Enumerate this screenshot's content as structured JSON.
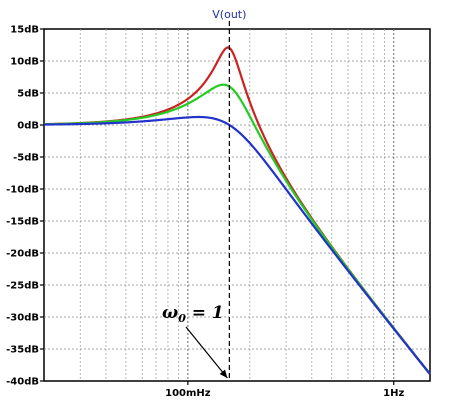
{
  "chart_data": {
    "type": "line",
    "title": "V(out)",
    "xlabel": "",
    "ylabel": "",
    "x_scale": "log",
    "xlim_hz": [
      0.02,
      1.5
    ],
    "ylim_db": [
      -40,
      15
    ],
    "grid": true,
    "y_ticks": [
      {
        "value": 15,
        "label": "15dB"
      },
      {
        "value": 10,
        "label": "10dB"
      },
      {
        "value": 5,
        "label": "5dB"
      },
      {
        "value": 0,
        "label": "0dB"
      },
      {
        "value": -5,
        "label": "-5dB"
      },
      {
        "value": -10,
        "label": "-10dB"
      },
      {
        "value": -15,
        "label": "-15dB"
      },
      {
        "value": -20,
        "label": "-20dB"
      },
      {
        "value": -25,
        "label": "-25dB"
      },
      {
        "value": -30,
        "label": "-30dB"
      },
      {
        "value": -35,
        "label": "-35dB"
      },
      {
        "value": -40,
        "label": "-40dB"
      }
    ],
    "x_ticks": [
      {
        "value": 0.1,
        "label": "100mHz"
      },
      {
        "value": 1,
        "label": "1Hz"
      }
    ],
    "marker_frequency_hz": 0.159,
    "series": [
      {
        "color": "#cc2222",
        "damping_zeta": 0.125,
        "x": [
          0.02,
          0.03,
          0.05,
          0.07,
          0.09,
          0.11,
          0.13,
          0.145,
          0.155,
          0.159,
          0.165,
          0.18,
          0.2,
          0.25,
          0.3,
          0.5,
          0.7,
          1.0,
          1.5
        ],
        "values": [
          0.14,
          0.32,
          0.94,
          2.0,
          3.6,
          5.9,
          9.0,
          11.5,
          12.0,
          11.9,
          11.0,
          8.0,
          4.5,
          -1.0,
          -5.2,
          -14.5,
          -20.2,
          -26.6,
          -33.6
        ]
      },
      {
        "color": "#22cc22",
        "damping_zeta": 0.25,
        "x": [
          0.02,
          0.03,
          0.05,
          0.07,
          0.09,
          0.11,
          0.13,
          0.145,
          0.155,
          0.159,
          0.165,
          0.18,
          0.2,
          0.25,
          0.3,
          0.5,
          0.7,
          1.0,
          1.5
        ],
        "values": [
          0.12,
          0.28,
          0.83,
          1.7,
          2.9,
          4.2,
          5.5,
          6.1,
          6.1,
          6.0,
          5.6,
          4.3,
          2.4,
          -1.8,
          -5.5,
          -14.6,
          -20.2,
          -26.6,
          -33.6
        ]
      },
      {
        "color": "#2233cc",
        "damping_zeta": 0.5,
        "x": [
          0.02,
          0.03,
          0.05,
          0.07,
          0.09,
          0.11,
          0.13,
          0.145,
          0.155,
          0.159,
          0.165,
          0.18,
          0.2,
          0.25,
          0.3,
          0.5,
          0.7,
          1.0,
          1.5
        ],
        "values": [
          0.07,
          0.15,
          0.42,
          0.73,
          1.03,
          1.2,
          1.08,
          0.66,
          0.23,
          0.0,
          -0.4,
          -1.5,
          -3.1,
          -6.9,
          -10.0,
          -18.0,
          -23.2,
          -29.3,
          -36.4
        ]
      }
    ]
  },
  "annotation": {
    "omega": "ω",
    "subscript": "0",
    "rest": " = 1"
  }
}
